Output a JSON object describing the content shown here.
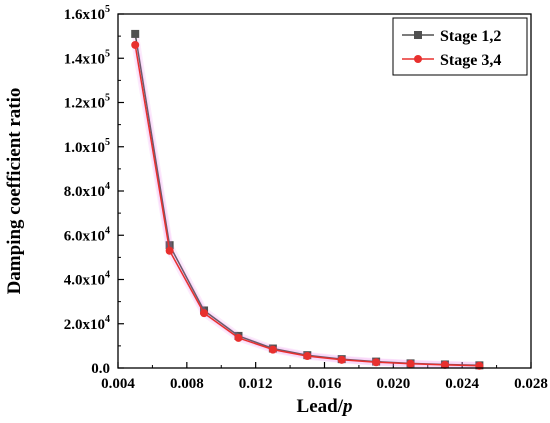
{
  "chart_data": {
    "type": "line",
    "xlabel": "Lead/",
    "xlabel_italic": "p",
    "ylabel": "Damping coefficient ratio",
    "xlim": [
      0.004,
      0.028
    ],
    "ylim": [
      0,
      160000
    ],
    "x_ticks": [
      {
        "value": 0.004,
        "label": "0.004"
      },
      {
        "value": 0.008,
        "label": "0.008"
      },
      {
        "value": 0.012,
        "label": "0.012"
      },
      {
        "value": 0.016,
        "label": "0.016"
      },
      {
        "value": 0.02,
        "label": "0.020"
      },
      {
        "value": 0.024,
        "label": "0.024"
      },
      {
        "value": 0.028,
        "label": "0.028"
      }
    ],
    "y_ticks": [
      {
        "value": 0,
        "mantissa": "0.0",
        "exp": ""
      },
      {
        "value": 20000,
        "mantissa": "2.0x10",
        "exp": "4"
      },
      {
        "value": 40000,
        "mantissa": "4.0x10",
        "exp": "4"
      },
      {
        "value": 60000,
        "mantissa": "6.0x10",
        "exp": "4"
      },
      {
        "value": 80000,
        "mantissa": "8.0x10",
        "exp": "4"
      },
      {
        "value": 100000,
        "mantissa": "1.0x10",
        "exp": "5"
      },
      {
        "value": 120000,
        "mantissa": "1.2x10",
        "exp": "5"
      },
      {
        "value": 140000,
        "mantissa": "1.4x10",
        "exp": "5"
      },
      {
        "value": 160000,
        "mantissa": "1.6x10",
        "exp": "5"
      }
    ],
    "legend_position": "top-right",
    "series": [
      {
        "name": "Stage 1,2",
        "color": "#505050",
        "marker": "square",
        "x": [
          0.005,
          0.007,
          0.009,
          0.011,
          0.013,
          0.015,
          0.017,
          0.019,
          0.021,
          0.023,
          0.025
        ],
        "y": [
          151000,
          55500,
          26000,
          14500,
          8800,
          5800,
          4000,
          2900,
          2100,
          1600,
          1200
        ]
      },
      {
        "name": "Stage 3,4",
        "color": "#e8302e",
        "marker": "circle",
        "x": [
          0.005,
          0.007,
          0.009,
          0.011,
          0.013,
          0.015,
          0.017,
          0.019,
          0.021,
          0.023,
          0.025
        ],
        "y": [
          146000,
          53000,
          24800,
          13600,
          8300,
          5400,
          3700,
          2600,
          1900,
          1400,
          1000
        ]
      }
    ]
  }
}
